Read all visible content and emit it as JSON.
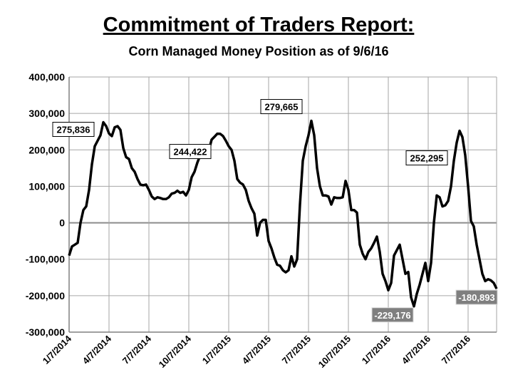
{
  "chart_data": {
    "type": "line",
    "title": "Commitment of Traders Report:",
    "subtitle": "Corn Managed Money Position as of 9/6/16",
    "color": "#000000",
    "grid": true,
    "ylim": [
      -300000,
      400000
    ],
    "yticks": [
      {
        "value": -300000,
        "label": "-300,000"
      },
      {
        "value": -200000,
        "label": "-200,000"
      },
      {
        "value": -100000,
        "label": "-100,000"
      },
      0,
      {
        "value": 100000,
        "label": "100,000"
      },
      {
        "value": 200000,
        "label": "200,000"
      },
      {
        "value": 300000,
        "label": "300,000"
      },
      {
        "value": 400000,
        "label": "400,000"
      }
    ],
    "categories": [
      "1/7/2014",
      null,
      null,
      null,
      null,
      null,
      null,
      null,
      null,
      null,
      null,
      null,
      null,
      null,
      "4/7/2014",
      null,
      null,
      null,
      null,
      null,
      null,
      null,
      null,
      null,
      null,
      null,
      null,
      null,
      "7/7/2014",
      null,
      null,
      null,
      null,
      null,
      null,
      null,
      null,
      null,
      null,
      null,
      null,
      null,
      "10/7/2014",
      null,
      null,
      null,
      null,
      null,
      null,
      null,
      null,
      null,
      null,
      null,
      null,
      null,
      "1/7/2015",
      null,
      null,
      null,
      null,
      null,
      null,
      null,
      null,
      null,
      null,
      null,
      null,
      null,
      "4/7/2015",
      null,
      null,
      null,
      null,
      null,
      null,
      null,
      null,
      null,
      null,
      null,
      null,
      null,
      "7/7/2015",
      null,
      null,
      null,
      null,
      null,
      null,
      null,
      null,
      null,
      null,
      null,
      null,
      null,
      "10/7/2015",
      null,
      null,
      null,
      null,
      null,
      null,
      null,
      null,
      null,
      null,
      null,
      null,
      null,
      "1/7/2016",
      null,
      null,
      null,
      null,
      null,
      null,
      null,
      null,
      null,
      null,
      null,
      null,
      null,
      "4/7/2016",
      null,
      null,
      null,
      null,
      null,
      null,
      null,
      null,
      null,
      null,
      null,
      null,
      null,
      "7/7/2016",
      null,
      null,
      null,
      null,
      null,
      null,
      null,
      null,
      null,
      null
    ],
    "values": [
      -90000,
      -65000,
      -60000,
      -55000,
      0,
      35000,
      45000,
      90000,
      160000,
      210000,
      225000,
      240000,
      275836,
      265000,
      245000,
      238000,
      262000,
      265000,
      255000,
      205000,
      180000,
      175000,
      150000,
      140000,
      120000,
      105000,
      103000,
      105000,
      90000,
      72000,
      65000,
      70000,
      68000,
      65000,
      65000,
      70000,
      80000,
      82000,
      88000,
      82000,
      85000,
      75000,
      90000,
      125000,
      140000,
      165000,
      185000,
      188000,
      205000,
      198000,
      228000,
      236000,
      244422,
      244000,
      238000,
      225000,
      210000,
      200000,
      170000,
      120000,
      110000,
      105000,
      90000,
      60000,
      40000,
      25000,
      -35000,
      0,
      8000,
      8000,
      -50000,
      -70000,
      -95000,
      -115000,
      -118000,
      -130000,
      -136000,
      -130000,
      -92000,
      -120000,
      -100000,
      50000,
      170000,
      210000,
      240000,
      279665,
      240000,
      150000,
      100000,
      75000,
      75000,
      72000,
      50000,
      70000,
      68000,
      68000,
      70000,
      115000,
      90000,
      35000,
      35000,
      28000,
      -60000,
      -85000,
      -100000,
      -80000,
      -70000,
      -55000,
      -38000,
      -80000,
      -140000,
      -160000,
      -185000,
      -165000,
      -90000,
      -75000,
      -60000,
      -100000,
      -140000,
      -135000,
      -205000,
      -229176,
      -195000,
      -170000,
      -140000,
      -110000,
      -160000,
      -110000,
      0,
      75000,
      70000,
      45000,
      48000,
      60000,
      100000,
      170000,
      220000,
      252295,
      235000,
      185000,
      100000,
      5000,
      -10000,
      -60000,
      -100000,
      -140000,
      -160000,
      -155000,
      -158000,
      -165000,
      -180893
    ],
    "value_labels": [
      null,
      null,
      null,
      null,
      null,
      null,
      null,
      null,
      null,
      null,
      null,
      null,
      "275,836",
      null,
      null,
      null,
      null,
      null,
      null,
      null,
      null,
      null,
      null,
      null,
      null,
      null,
      null,
      null,
      null,
      null,
      null,
      null,
      null,
      null,
      null,
      null,
      null,
      null,
      null,
      null,
      null,
      null,
      null,
      null,
      null,
      null,
      null,
      null,
      null,
      null,
      null,
      null,
      "244,422",
      null,
      null,
      null,
      null,
      null,
      null,
      null,
      null,
      null,
      null,
      null,
      null,
      null,
      null,
      null,
      null,
      null,
      null,
      null,
      null,
      null,
      null,
      null,
      null,
      null,
      null,
      null,
      null,
      null,
      null,
      null,
      null,
      "279,665",
      null,
      null,
      null,
      null,
      null,
      null,
      null,
      null,
      null,
      null,
      null,
      null,
      null,
      null,
      null,
      null,
      null,
      null,
      null,
      null,
      null,
      null,
      null,
      null,
      null,
      null,
      null,
      null,
      null,
      null,
      null,
      null,
      null,
      null,
      null,
      "-229,176",
      null,
      null,
      null,
      null,
      null,
      null,
      null,
      null,
      null,
      null,
      null,
      null,
      null,
      null,
      null,
      "252,295",
      null,
      null,
      null,
      null,
      null,
      null,
      null,
      null,
      null,
      null,
      null,
      null,
      "-180,893"
    ]
  }
}
